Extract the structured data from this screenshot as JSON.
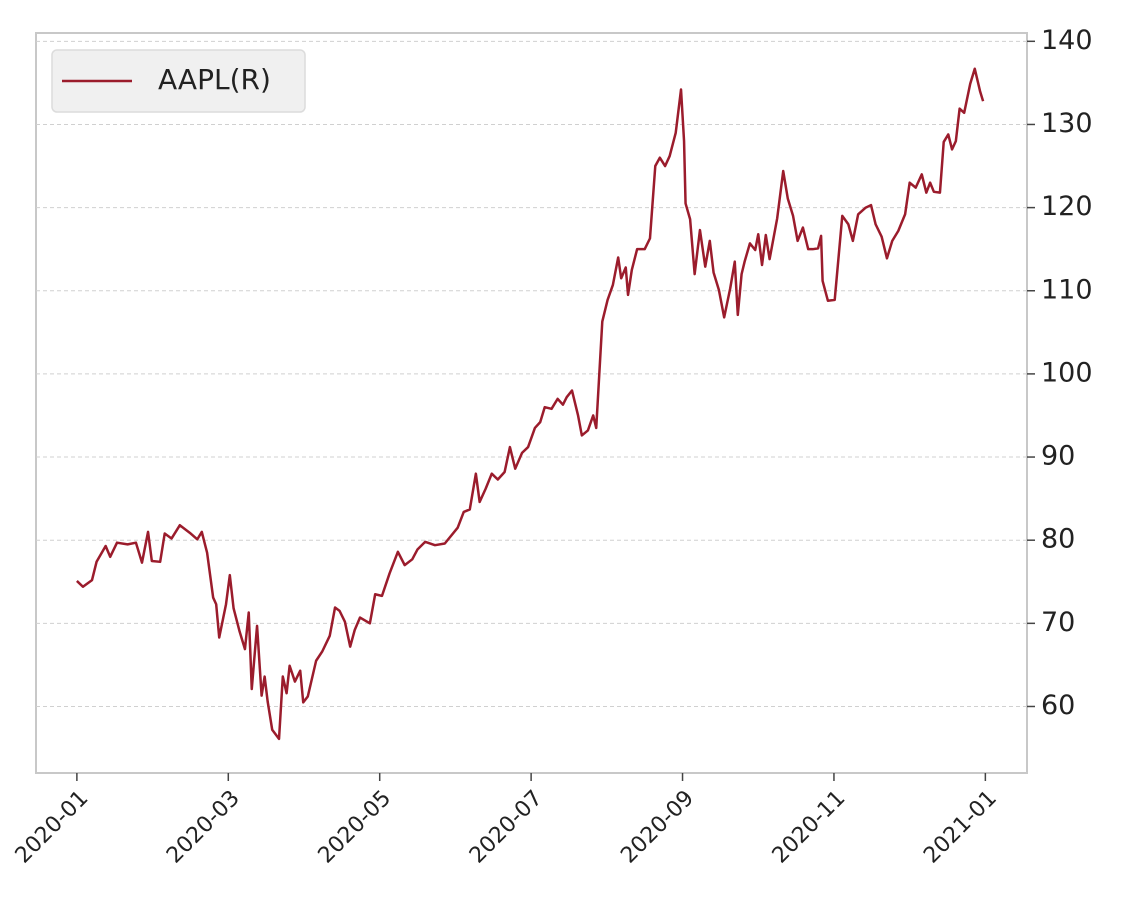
{
  "chart_data": {
    "type": "line",
    "x": [
      0.0,
      0.08,
      0.2,
      0.26,
      0.38,
      0.44,
      0.53,
      0.67,
      0.78,
      0.86,
      0.94,
      0.99,
      1.1,
      1.16,
      1.25,
      1.36,
      1.49,
      1.59,
      1.65,
      1.72,
      1.8,
      1.84,
      1.88,
      1.97,
      2.02,
      2.07,
      2.15,
      2.22,
      2.27,
      2.31,
      2.38,
      2.44,
      2.48,
      2.52,
      2.58,
      2.67,
      2.72,
      2.77,
      2.81,
      2.88,
      2.95,
      2.99,
      3.05,
      3.16,
      3.24,
      3.34,
      3.41,
      3.47,
      3.54,
      3.61,
      3.67,
      3.74,
      3.87,
      3.94,
      4.03,
      4.13,
      4.24,
      4.33,
      4.43,
      4.5,
      4.6,
      4.73,
      4.86,
      5.03,
      5.11,
      5.19,
      5.27,
      5.32,
      5.4,
      5.48,
      5.56,
      5.65,
      5.72,
      5.79,
      5.88,
      5.96,
      6.05,
      6.12,
      6.18,
      6.27,
      6.35,
      6.42,
      6.47,
      6.54,
      6.62,
      6.67,
      6.75,
      6.82,
      6.86,
      6.94,
      7.01,
      7.08,
      7.15,
      7.19,
      7.25,
      7.28,
      7.33,
      7.4,
      7.5,
      7.57,
      7.64,
      7.7,
      7.77,
      7.83,
      7.91,
      7.98,
      8.02,
      8.04,
      8.1,
      8.16,
      8.23,
      8.3,
      8.36,
      8.41,
      8.48,
      8.55,
      8.63,
      8.69,
      8.73,
      8.78,
      8.82,
      8.89,
      8.96,
      9.0,
      9.05,
      9.1,
      9.15,
      9.25,
      9.33,
      9.39,
      9.46,
      9.52,
      9.59,
      9.66,
      9.72,
      9.79,
      9.83,
      9.85,
      9.92,
      10.01,
      10.11,
      10.19,
      10.25,
      10.32,
      10.42,
      10.49,
      10.55,
      10.63,
      10.7,
      10.77,
      10.85,
      10.94,
      11.0,
      11.08,
      11.16,
      11.22,
      11.27,
      11.32,
      11.4,
      11.45,
      11.51,
      11.56,
      11.61,
      11.66,
      11.72,
      11.8,
      11.86,
      11.93,
      11.97
    ],
    "series": [
      {
        "name": "AAPL(R)",
        "color": "#9b1c2c",
        "values": [
          75.1,
          74.4,
          75.2,
          77.4,
          79.3,
          78.0,
          79.7,
          79.5,
          79.7,
          77.3,
          81.0,
          77.5,
          77.4,
          80.8,
          80.2,
          81.8,
          80.9,
          80.1,
          81.0,
          78.5,
          73.1,
          72.3,
          68.3,
          72.3,
          75.8,
          71.8,
          69.0,
          66.9,
          71.3,
          62.1,
          69.7,
          61.3,
          63.6,
          60.6,
          57.2,
          56.1,
          63.6,
          61.6,
          64.9,
          63.0,
          64.3,
          60.5,
          61.2,
          65.5,
          66.6,
          68.5,
          71.9,
          71.5,
          70.2,
          67.2,
          69.2,
          70.7,
          70.0,
          73.5,
          73.3,
          76.0,
          78.6,
          77.0,
          77.7,
          78.9,
          79.8,
          79.4,
          79.6,
          81.5,
          83.4,
          83.7,
          88.0,
          84.6,
          86.2,
          88.0,
          87.3,
          88.2,
          91.2,
          88.6,
          90.5,
          91.2,
          93.5,
          94.2,
          96.0,
          95.8,
          97.0,
          96.3,
          97.2,
          98.0,
          95.0,
          92.6,
          93.2,
          95.0,
          93.5,
          106.3,
          108.9,
          110.7,
          114.0,
          111.5,
          112.8,
          109.5,
          112.5,
          115.0,
          115.0,
          116.3,
          125.0,
          126.0,
          125.0,
          126.2,
          129.0,
          134.2,
          128.0,
          120.5,
          118.6,
          112.0,
          117.3,
          112.9,
          116.0,
          112.2,
          110.1,
          106.8,
          110.3,
          113.5,
          107.1,
          112.0,
          113.5,
          115.7,
          114.9,
          116.8,
          113.1,
          116.7,
          113.8,
          118.7,
          124.4,
          121.1,
          119.0,
          116.0,
          117.6,
          115.0,
          115.0,
          115.1,
          116.6,
          111.2,
          108.8,
          108.9,
          119.0,
          118.0,
          116.0,
          119.2,
          120.0,
          120.3,
          118.0,
          116.5,
          113.9,
          116.0,
          117.2,
          119.2,
          123.0,
          122.4,
          124.0,
          121.8,
          123.0,
          121.9,
          121.8,
          127.9,
          128.8,
          127.0,
          128.0,
          131.9,
          131.4,
          134.9,
          136.7,
          134.0,
          132.8
        ]
      }
    ],
    "xlim": [
      -0.54,
      12.55
    ],
    "xticks": [
      {
        "value": 0,
        "label": "2020-01"
      },
      {
        "value": 2,
        "label": "2020-03"
      },
      {
        "value": 4,
        "label": "2020-05"
      },
      {
        "value": 6,
        "label": "2020-07"
      },
      {
        "value": 8,
        "label": "2020-09"
      },
      {
        "value": 10,
        "label": "2020-11"
      },
      {
        "value": 12,
        "label": "2021-01"
      }
    ],
    "ylim": [
      52,
      141
    ],
    "yticks": [
      60,
      70,
      80,
      90,
      100,
      110,
      120,
      130,
      140
    ],
    "y_axis_side": "right",
    "grid": true,
    "legend": "upper left"
  }
}
